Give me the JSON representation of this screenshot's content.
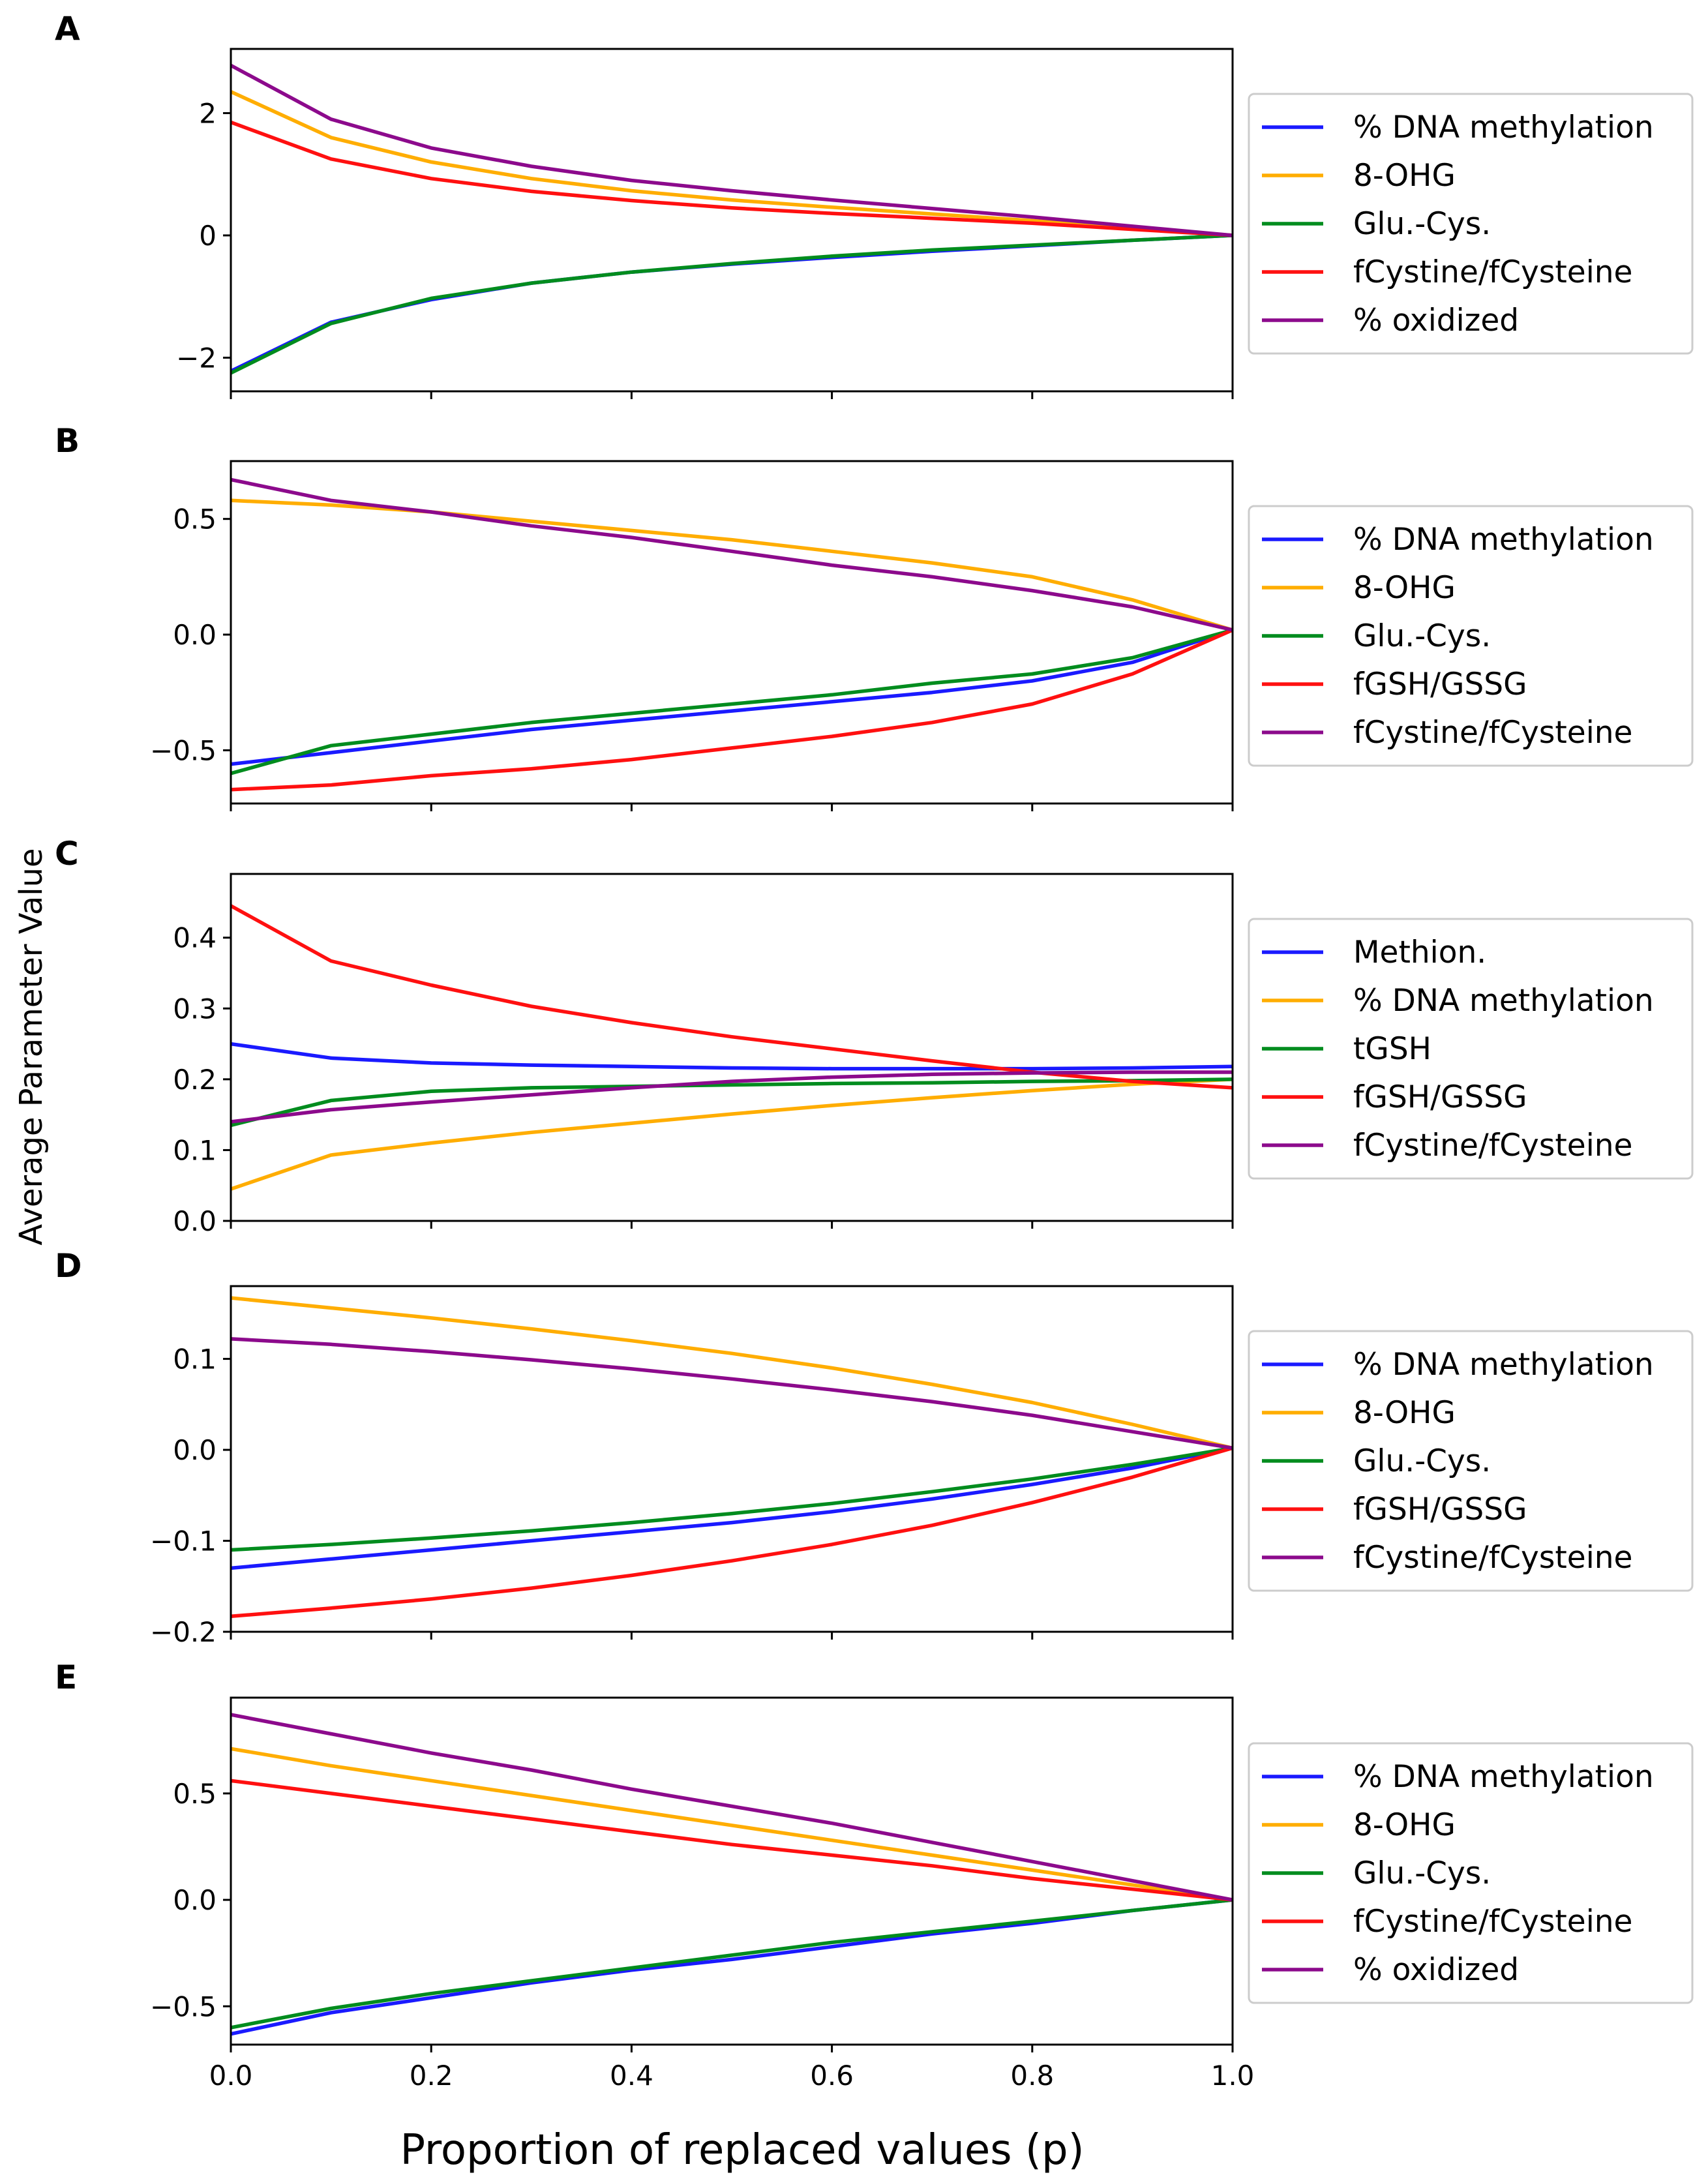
{
  "figure": {
    "xlabel": "Proportion of replaced values (p)",
    "ylabel": "Average Parameter Value",
    "x_tick_labels": [
      "0.0",
      "0.2",
      "0.4",
      "0.6",
      "0.8",
      "1.0"
    ]
  },
  "colors": {
    "blue": "#1a1aff",
    "orange": "#ffad00",
    "green": "#008c1e",
    "red": "#ff1010",
    "purple": "#8c0a8c"
  },
  "chart_data": [
    {
      "type": "line",
      "panel": "A",
      "x": [
        0,
        0.1,
        0.2,
        0.3,
        0.4,
        0.5,
        0.6,
        0.7,
        0.8,
        0.9,
        1.0
      ],
      "ylim": [
        -2.55,
        3.05
      ],
      "yticks": [
        -2,
        0,
        2
      ],
      "ytick_labels": [
        "−2",
        "0",
        "2"
      ],
      "xlim": [
        0,
        1
      ],
      "series": [
        {
          "name": "% DNA methylation",
          "color": "#1a1aff",
          "values": [
            -2.22,
            -1.42,
            -1.05,
            -0.78,
            -0.6,
            -0.47,
            -0.36,
            -0.26,
            -0.17,
            -0.08,
            0.0
          ]
        },
        {
          "name": "8-OHG",
          "color": "#ffad00",
          "values": [
            2.35,
            1.6,
            1.2,
            0.93,
            0.73,
            0.58,
            0.46,
            0.35,
            0.24,
            0.12,
            0.0
          ]
        },
        {
          "name": "Glu.-Cys.",
          "color": "#008c1e",
          "values": [
            -2.25,
            -1.44,
            -1.03,
            -0.78,
            -0.6,
            -0.46,
            -0.34,
            -0.24,
            -0.16,
            -0.08,
            0.0
          ]
        },
        {
          "name": "fCystine/fCysteine",
          "color": "#ff1010",
          "values": [
            1.85,
            1.25,
            0.93,
            0.72,
            0.57,
            0.45,
            0.36,
            0.28,
            0.2,
            0.1,
            0.0
          ]
        },
        {
          "name": "% oxidized",
          "color": "#8c0a8c",
          "values": [
            2.78,
            1.9,
            1.43,
            1.13,
            0.9,
            0.73,
            0.58,
            0.44,
            0.3,
            0.15,
            0.0
          ]
        }
      ]
    },
    {
      "type": "line",
      "panel": "B",
      "x": [
        0,
        0.1,
        0.2,
        0.3,
        0.4,
        0.5,
        0.6,
        0.7,
        0.8,
        0.9,
        1.0
      ],
      "ylim": [
        -0.73,
        0.75
      ],
      "yticks": [
        -0.5,
        0.0,
        0.5
      ],
      "ytick_labels": [
        "−0.5",
        "0.0",
        "0.5"
      ],
      "xlim": [
        0,
        1
      ],
      "series": [
        {
          "name": "% DNA methylation",
          "color": "#1a1aff",
          "values": [
            -0.56,
            -0.51,
            -0.46,
            -0.41,
            -0.37,
            -0.33,
            -0.29,
            -0.25,
            -0.2,
            -0.12,
            0.02
          ]
        },
        {
          "name": "8-OHG",
          "color": "#ffad00",
          "values": [
            0.58,
            0.56,
            0.53,
            0.49,
            0.45,
            0.41,
            0.36,
            0.31,
            0.25,
            0.15,
            0.02
          ]
        },
        {
          "name": "Glu.-Cys.",
          "color": "#008c1e",
          "values": [
            -0.6,
            -0.48,
            -0.43,
            -0.38,
            -0.34,
            -0.3,
            -0.26,
            -0.21,
            -0.17,
            -0.1,
            0.02
          ]
        },
        {
          "name": "fGSH/GSSG",
          "color": "#ff1010",
          "values": [
            -0.67,
            -0.65,
            -0.61,
            -0.58,
            -0.54,
            -0.49,
            -0.44,
            -0.38,
            -0.3,
            -0.17,
            0.02
          ]
        },
        {
          "name": "fCystine/fCysteine",
          "color": "#8c0a8c",
          "values": [
            0.67,
            0.58,
            0.53,
            0.47,
            0.42,
            0.36,
            0.3,
            0.25,
            0.19,
            0.12,
            0.02
          ]
        }
      ]
    },
    {
      "type": "line",
      "panel": "C",
      "x": [
        0,
        0.1,
        0.2,
        0.3,
        0.4,
        0.5,
        0.6,
        0.7,
        0.8,
        0.9,
        1.0
      ],
      "ylim": [
        0.0,
        0.49
      ],
      "yticks": [
        0.0,
        0.1,
        0.2,
        0.3,
        0.4
      ],
      "ytick_labels": [
        "0.0",
        "0.1",
        "0.2",
        "0.3",
        "0.4"
      ],
      "xlim": [
        0,
        1
      ],
      "series": [
        {
          "name": "Methion.",
          "color": "#1a1aff",
          "values": [
            0.25,
            0.23,
            0.223,
            0.22,
            0.218,
            0.216,
            0.215,
            0.215,
            0.215,
            0.216,
            0.218
          ]
        },
        {
          "name": "% DNA methylation",
          "color": "#ffad00",
          "values": [
            0.045,
            0.093,
            0.11,
            0.125,
            0.138,
            0.151,
            0.163,
            0.174,
            0.184,
            0.193,
            0.2
          ]
        },
        {
          "name": "tGSH",
          "color": "#008c1e",
          "values": [
            0.135,
            0.17,
            0.183,
            0.188,
            0.19,
            0.192,
            0.194,
            0.195,
            0.197,
            0.198,
            0.2
          ]
        },
        {
          "name": "fGSH/GSSG",
          "color": "#ff1010",
          "values": [
            0.445,
            0.367,
            0.333,
            0.303,
            0.28,
            0.26,
            0.243,
            0.226,
            0.21,
            0.197,
            0.188
          ]
        },
        {
          "name": "fCystine/fCysteine",
          "color": "#8c0a8c",
          "values": [
            0.14,
            0.157,
            0.168,
            0.178,
            0.188,
            0.197,
            0.203,
            0.207,
            0.209,
            0.21,
            0.21
          ]
        }
      ]
    },
    {
      "type": "line",
      "panel": "D",
      "x": [
        0,
        0.1,
        0.2,
        0.3,
        0.4,
        0.5,
        0.6,
        0.7,
        0.8,
        0.9,
        1.0
      ],
      "ylim": [
        -0.2,
        0.18
      ],
      "yticks": [
        -0.2,
        -0.1,
        0.0,
        0.1
      ],
      "ytick_labels": [
        "−0.2",
        "−0.1",
        "0.0",
        "0.1"
      ],
      "xlim": [
        0,
        1
      ],
      "series": [
        {
          "name": "% DNA methylation",
          "color": "#1a1aff",
          "values": [
            -0.13,
            -0.12,
            -0.11,
            -0.1,
            -0.09,
            -0.08,
            -0.068,
            -0.054,
            -0.038,
            -0.02,
            0.002
          ]
        },
        {
          "name": "8-OHG",
          "color": "#ffad00",
          "values": [
            0.167,
            0.156,
            0.145,
            0.133,
            0.12,
            0.106,
            0.09,
            0.072,
            0.052,
            0.028,
            0.002
          ]
        },
        {
          "name": "Glu.-Cys.",
          "color": "#008c1e",
          "values": [
            -0.11,
            -0.104,
            -0.097,
            -0.089,
            -0.08,
            -0.07,
            -0.059,
            -0.046,
            -0.032,
            -0.016,
            0.002
          ]
        },
        {
          "name": "fGSH/GSSG",
          "color": "#ff1010",
          "values": [
            -0.183,
            -0.174,
            -0.164,
            -0.152,
            -0.138,
            -0.122,
            -0.104,
            -0.083,
            -0.058,
            -0.03,
            0.002
          ]
        },
        {
          "name": "fCystine/fCysteine",
          "color": "#8c0a8c",
          "values": [
            0.122,
            0.116,
            0.108,
            0.099,
            0.089,
            0.078,
            0.066,
            0.053,
            0.038,
            0.02,
            0.002
          ]
        }
      ]
    },
    {
      "type": "line",
      "panel": "E",
      "x": [
        0,
        0.1,
        0.2,
        0.3,
        0.4,
        0.5,
        0.6,
        0.7,
        0.8,
        0.9,
        1.0
      ],
      "ylim": [
        -0.68,
        0.95
      ],
      "yticks": [
        -0.5,
        0.0,
        0.5
      ],
      "ytick_labels": [
        "−0.5",
        "0.0",
        "0.5"
      ],
      "xlim": [
        0,
        1
      ],
      "series": [
        {
          "name": "% DNA methylation",
          "color": "#1a1aff",
          "values": [
            -0.63,
            -0.53,
            -0.46,
            -0.39,
            -0.33,
            -0.28,
            -0.22,
            -0.16,
            -0.11,
            -0.05,
            0.0
          ]
        },
        {
          "name": "8-OHG",
          "color": "#ffad00",
          "values": [
            0.71,
            0.63,
            0.56,
            0.49,
            0.42,
            0.35,
            0.28,
            0.21,
            0.14,
            0.07,
            0.0
          ]
        },
        {
          "name": "Glu.-Cys.",
          "color": "#008c1e",
          "values": [
            -0.6,
            -0.51,
            -0.44,
            -0.38,
            -0.32,
            -0.26,
            -0.2,
            -0.15,
            -0.1,
            -0.05,
            0.0
          ]
        },
        {
          "name": "fCystine/fCysteine",
          "color": "#ff1010",
          "values": [
            0.56,
            0.5,
            0.44,
            0.38,
            0.32,
            0.26,
            0.21,
            0.16,
            0.1,
            0.05,
            0.0
          ]
        },
        {
          "name": "% oxidized",
          "color": "#8c0a8c",
          "values": [
            0.87,
            0.78,
            0.69,
            0.61,
            0.52,
            0.44,
            0.36,
            0.27,
            0.18,
            0.09,
            0.0
          ]
        }
      ]
    }
  ]
}
